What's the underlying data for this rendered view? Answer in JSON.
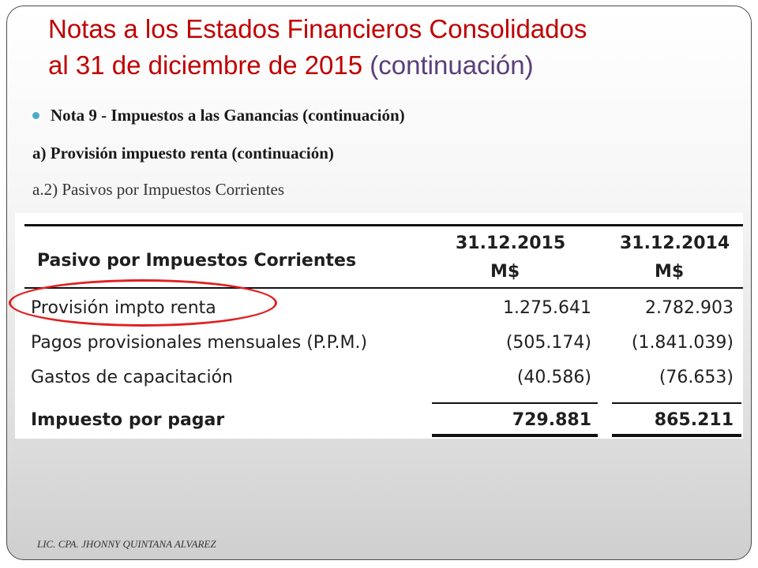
{
  "title": {
    "line1": "Notas a los Estados Financieros Consolidados",
    "line2": "al 31 de diciembre de 2015",
    "line2_suffix": "(continuación)"
  },
  "bullet": "Nota 9 - Impuestos a las Ganancias (continuación)",
  "subheading_a": "a) Provisión impuesto renta (continuación)",
  "subheading_a2": "a.2) Pasivos por Impuestos Corrientes",
  "table": {
    "header": {
      "label": "Pasivo por Impuestos Corrientes",
      "col1_line1": "31.12.2015",
      "col1_line2": "M$",
      "col2_line1": "31.12.2014",
      "col2_line2": "M$"
    },
    "rows": [
      {
        "label": "Provisión impto renta",
        "col1": "1.275.641",
        "col2": "2.782.903"
      },
      {
        "label": "Pagos provisionales mensuales (P.P.M.)",
        "col1": "(505.174)",
        "col2": "(1.841.039)"
      },
      {
        "label": "Gastos de capacitación",
        "col1": "(40.586)",
        "col2": "(76.653)"
      }
    ],
    "total": {
      "label": "Impuesto por pagar",
      "col1": "729.881",
      "col2": "865.211"
    }
  },
  "footer": "LIC. CPA. JHONNY QUINTANA ALVAREZ",
  "colors": {
    "title": "#c00000",
    "title_suffix": "#5a3f7a",
    "bullet": "#4bacc6",
    "highlight_ellipse": "#e02020"
  }
}
